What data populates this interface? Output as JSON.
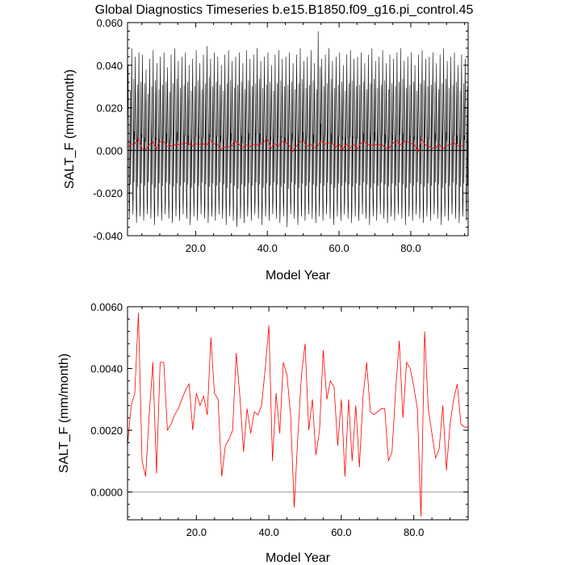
{
  "title": "Global Diagnostics Timeseries b.e15.B1850.f09_g16.pi_control.45",
  "colors": {
    "monthly_line": "#000000",
    "annual_line": "#ff0000",
    "zero_line_top": "#000000",
    "zero_line_bottom": "#a0a0a0"
  },
  "chart_data": [
    {
      "type": "line",
      "xlabel": "Model Year",
      "ylabel": "SALT_F (mm/month)",
      "xlim": [
        1,
        96
      ],
      "ylim": [
        -0.04,
        0.06
      ],
      "xticks": [
        20,
        40,
        60,
        80
      ],
      "xtick_labels": [
        "20.0",
        "40.0",
        "60.0",
        "80.0"
      ],
      "yticks": [
        -0.04,
        -0.02,
        0.0,
        0.02,
        0.04,
        0.06
      ],
      "ytick_labels": [
        "-0.040",
        "-0.020",
        "0.000",
        "0.020",
        "0.040",
        "0.060"
      ],
      "reference_line": 0.0,
      "series": [
        {
          "type": "monthly_envelope",
          "color": "#000000",
          "description_of_values": "monthly values oscillating seasonally each year",
          "yearly_max": [
            0.04,
            0.048,
            0.044,
            0.046,
            0.045,
            0.038,
            0.043,
            0.047,
            0.041,
            0.044,
            0.046,
            0.039,
            0.045,
            0.048,
            0.042,
            0.044,
            0.046,
            0.04,
            0.043,
            0.047,
            0.041,
            0.045,
            0.049,
            0.043,
            0.046,
            0.044,
            0.04,
            0.045,
            0.047,
            0.042,
            0.044,
            0.046,
            0.041,
            0.047,
            0.043,
            0.045,
            0.048,
            0.042,
            0.044,
            0.046,
            0.04,
            0.045,
            0.047,
            0.043,
            0.044,
            0.046,
            0.041,
            0.045,
            0.048,
            0.042,
            0.044,
            0.047,
            0.041,
            0.056,
            0.043,
            0.045,
            0.048,
            0.042,
            0.044,
            0.046,
            0.04,
            0.045,
            0.047,
            0.043,
            0.044,
            0.046,
            0.041,
            0.045,
            0.048,
            0.042,
            0.044,
            0.047,
            0.041,
            0.045,
            0.043,
            0.046,
            0.048,
            0.042,
            0.044,
            0.046,
            0.04,
            0.045,
            0.047,
            0.043,
            0.044,
            0.046,
            0.041,
            0.045,
            0.048,
            0.042,
            0.044,
            0.046,
            0.04,
            0.045,
            0.043
          ],
          "yearly_min": [
            -0.032,
            -0.03,
            -0.034,
            -0.031,
            -0.033,
            -0.03,
            -0.032,
            -0.035,
            -0.031,
            -0.033,
            -0.03,
            -0.032,
            -0.034,
            -0.031,
            -0.033,
            -0.03,
            -0.032,
            -0.035,
            -0.031,
            -0.033,
            -0.03,
            -0.032,
            -0.034,
            -0.031,
            -0.033,
            -0.03,
            -0.032,
            -0.035,
            -0.031,
            -0.033,
            -0.036,
            -0.032,
            -0.034,
            -0.031,
            -0.033,
            -0.03,
            -0.032,
            -0.035,
            -0.031,
            -0.033,
            -0.03,
            -0.032,
            -0.034,
            -0.031,
            -0.036,
            -0.03,
            -0.032,
            -0.035,
            -0.031,
            -0.033,
            -0.03,
            -0.032,
            -0.034,
            -0.031,
            -0.033,
            -0.03,
            -0.032,
            -0.035,
            -0.031,
            -0.033,
            -0.03,
            -0.032,
            -0.034,
            -0.031,
            -0.033,
            -0.03,
            -0.032,
            -0.035,
            -0.031,
            -0.033,
            -0.03,
            -0.032,
            -0.034,
            -0.031,
            -0.033,
            -0.03,
            -0.032,
            -0.035,
            -0.031,
            -0.033,
            -0.03,
            -0.032,
            -0.034,
            -0.031,
            -0.033,
            -0.03,
            -0.032,
            -0.035,
            -0.031,
            -0.033,
            -0.03,
            -0.032,
            -0.034,
            -0.031,
            -0.033
          ]
        },
        {
          "type": "annual_mean",
          "color": "#ff0000",
          "x": [
            1,
            2,
            3,
            4,
            5,
            6,
            7,
            8,
            9,
            10,
            11,
            12,
            13,
            14,
            15,
            16,
            17,
            18,
            19,
            20,
            21,
            22,
            23,
            24,
            25,
            26,
            27,
            28,
            29,
            30,
            31,
            32,
            33,
            34,
            35,
            36,
            37,
            38,
            39,
            40,
            41,
            42,
            43,
            44,
            45,
            46,
            47,
            48,
            49,
            50,
            51,
            52,
            53,
            54,
            55,
            56,
            57,
            58,
            59,
            60,
            61,
            62,
            63,
            64,
            65,
            66,
            67,
            68,
            69,
            70,
            71,
            72,
            73,
            74,
            75,
            76,
            77,
            78,
            79,
            80,
            81,
            82,
            83,
            84,
            85,
            86,
            87,
            88,
            89,
            90,
            91,
            92,
            93,
            94,
            95
          ],
          "values": [
            0.0015,
            0.0028,
            0.0032,
            0.0058,
            0.001,
            0.0005,
            0.0025,
            0.0042,
            0.0006,
            0.0042,
            0.0042,
            0.002,
            0.0022,
            0.0025,
            0.0027,
            0.003,
            0.0033,
            0.0035,
            0.002,
            0.0032,
            0.0028,
            0.0031,
            0.0025,
            0.005,
            0.0032,
            0.003,
            0.0005,
            0.0015,
            0.0017,
            0.002,
            0.0045,
            0.0031,
            0.0013,
            0.0027,
            0.0019,
            0.0026,
            0.0025,
            0.0028,
            0.004,
            0.0054,
            0.001,
            0.0032,
            0.0019,
            0.0042,
            0.0038,
            0.0025,
            -0.0005,
            0.0018,
            0.0038,
            0.0048,
            0.002,
            0.003,
            0.0012,
            0.002,
            0.0046,
            0.003,
            0.0036,
            0.0034,
            0.0015,
            0.003,
            0.0005,
            0.003,
            0.001,
            0.0028,
            0.0008,
            0.0031,
            0.0042,
            0.0026,
            0.0025,
            0.0026,
            0.0027,
            0.0027,
            0.001,
            0.0013,
            0.0033,
            0.0049,
            0.0024,
            0.0042,
            0.004,
            0.0034,
            0.0027,
            -0.0008,
            0.0052,
            0.0027,
            0.0019,
            0.0011,
            0.0014,
            0.0028,
            0.0007,
            0.0022,
            0.003,
            0.0035,
            0.0022,
            0.0021,
            0.0021
          ]
        }
      ]
    },
    {
      "type": "line",
      "xlabel": "Model Year",
      "ylabel": "SALT_F (mm/month)",
      "xlim": [
        1,
        95
      ],
      "ylim": [
        -0.0009,
        0.006
      ],
      "xticks": [
        20,
        40,
        60,
        80
      ],
      "xtick_labels": [
        "20.0",
        "40.0",
        "60.0",
        "80.0"
      ],
      "yticks": [
        0.0,
        0.002,
        0.004,
        0.006
      ],
      "ytick_labels": [
        "0.0000",
        "0.0020",
        "0.0040",
        "0.0060"
      ],
      "reference_line": 0.0,
      "series": [
        {
          "type": "annual_mean",
          "color": "#ff0000",
          "x": [
            1,
            2,
            3,
            4,
            5,
            6,
            7,
            8,
            9,
            10,
            11,
            12,
            13,
            14,
            15,
            16,
            17,
            18,
            19,
            20,
            21,
            22,
            23,
            24,
            25,
            26,
            27,
            28,
            29,
            30,
            31,
            32,
            33,
            34,
            35,
            36,
            37,
            38,
            39,
            40,
            41,
            42,
            43,
            44,
            45,
            46,
            47,
            48,
            49,
            50,
            51,
            52,
            53,
            54,
            55,
            56,
            57,
            58,
            59,
            60,
            61,
            62,
            63,
            64,
            65,
            66,
            67,
            68,
            69,
            70,
            71,
            72,
            73,
            74,
            75,
            76,
            77,
            78,
            79,
            80,
            81,
            82,
            83,
            84,
            85,
            86,
            87,
            88,
            89,
            90,
            91,
            92,
            93,
            94,
            95
          ],
          "values": [
            0.0015,
            0.0028,
            0.0032,
            0.0058,
            0.001,
            0.0005,
            0.0025,
            0.0042,
            0.0006,
            0.0042,
            0.0042,
            0.002,
            0.0022,
            0.0025,
            0.0027,
            0.003,
            0.0033,
            0.0035,
            0.002,
            0.0032,
            0.0028,
            0.0031,
            0.0025,
            0.005,
            0.0032,
            0.003,
            0.0005,
            0.0015,
            0.0017,
            0.002,
            0.0045,
            0.0031,
            0.0013,
            0.0027,
            0.0019,
            0.0026,
            0.0025,
            0.0028,
            0.004,
            0.0054,
            0.001,
            0.0032,
            0.0019,
            0.0042,
            0.0038,
            0.0025,
            -0.0005,
            0.0018,
            0.0038,
            0.0048,
            0.002,
            0.003,
            0.0012,
            0.002,
            0.0046,
            0.003,
            0.0036,
            0.0034,
            0.0015,
            0.003,
            0.0005,
            0.003,
            0.001,
            0.0028,
            0.0008,
            0.0031,
            0.0042,
            0.0026,
            0.0025,
            0.0026,
            0.0027,
            0.0027,
            0.001,
            0.0013,
            0.0033,
            0.0049,
            0.0024,
            0.0042,
            0.004,
            0.0034,
            0.0027,
            -0.0008,
            0.0052,
            0.0027,
            0.0019,
            0.0011,
            0.0014,
            0.0028,
            0.0007,
            0.0022,
            0.003,
            0.0035,
            0.0022,
            0.0021,
            0.0021
          ]
        }
      ]
    }
  ]
}
